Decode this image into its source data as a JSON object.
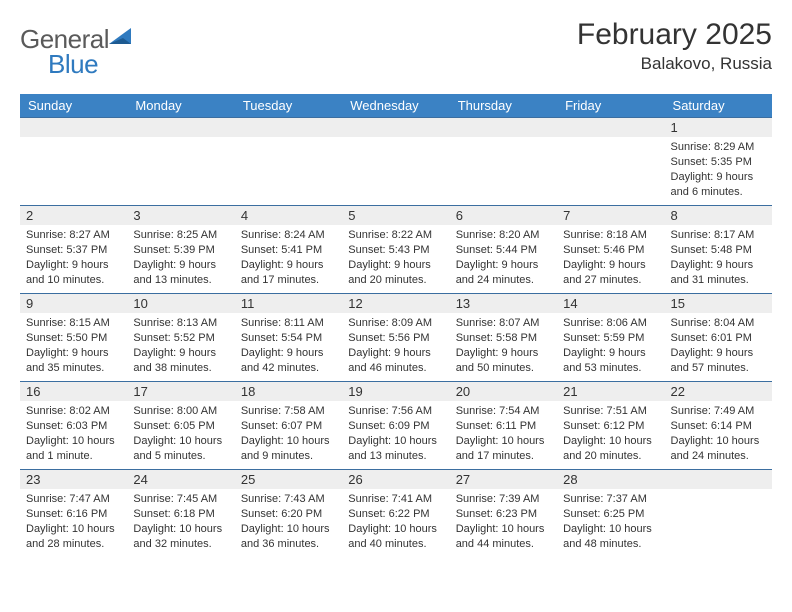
{
  "brand": {
    "part1": "General",
    "part2": "Blue"
  },
  "title": "February 2025",
  "location": "Balakovo, Russia",
  "colors": {
    "header_bg": "#3b82c4",
    "header_text": "#ffffff",
    "row_border": "#3b6ea0",
    "daynum_bg": "#eeeeee",
    "text": "#333333",
    "background": "#ffffff",
    "brand_gray": "#5a5a5a",
    "brand_blue": "#2f7abf"
  },
  "weekdays": [
    "Sunday",
    "Monday",
    "Tuesday",
    "Wednesday",
    "Thursday",
    "Friday",
    "Saturday"
  ],
  "weeks": [
    [
      {
        "n": "",
        "sunrise": "",
        "sunset": "",
        "daylight": ""
      },
      {
        "n": "",
        "sunrise": "",
        "sunset": "",
        "daylight": ""
      },
      {
        "n": "",
        "sunrise": "",
        "sunset": "",
        "daylight": ""
      },
      {
        "n": "",
        "sunrise": "",
        "sunset": "",
        "daylight": ""
      },
      {
        "n": "",
        "sunrise": "",
        "sunset": "",
        "daylight": ""
      },
      {
        "n": "",
        "sunrise": "",
        "sunset": "",
        "daylight": ""
      },
      {
        "n": "1",
        "sunrise": "Sunrise: 8:29 AM",
        "sunset": "Sunset: 5:35 PM",
        "daylight": "Daylight: 9 hours and 6 minutes."
      }
    ],
    [
      {
        "n": "2",
        "sunrise": "Sunrise: 8:27 AM",
        "sunset": "Sunset: 5:37 PM",
        "daylight": "Daylight: 9 hours and 10 minutes."
      },
      {
        "n": "3",
        "sunrise": "Sunrise: 8:25 AM",
        "sunset": "Sunset: 5:39 PM",
        "daylight": "Daylight: 9 hours and 13 minutes."
      },
      {
        "n": "4",
        "sunrise": "Sunrise: 8:24 AM",
        "sunset": "Sunset: 5:41 PM",
        "daylight": "Daylight: 9 hours and 17 minutes."
      },
      {
        "n": "5",
        "sunrise": "Sunrise: 8:22 AM",
        "sunset": "Sunset: 5:43 PM",
        "daylight": "Daylight: 9 hours and 20 minutes."
      },
      {
        "n": "6",
        "sunrise": "Sunrise: 8:20 AM",
        "sunset": "Sunset: 5:44 PM",
        "daylight": "Daylight: 9 hours and 24 minutes."
      },
      {
        "n": "7",
        "sunrise": "Sunrise: 8:18 AM",
        "sunset": "Sunset: 5:46 PM",
        "daylight": "Daylight: 9 hours and 27 minutes."
      },
      {
        "n": "8",
        "sunrise": "Sunrise: 8:17 AM",
        "sunset": "Sunset: 5:48 PM",
        "daylight": "Daylight: 9 hours and 31 minutes."
      }
    ],
    [
      {
        "n": "9",
        "sunrise": "Sunrise: 8:15 AM",
        "sunset": "Sunset: 5:50 PM",
        "daylight": "Daylight: 9 hours and 35 minutes."
      },
      {
        "n": "10",
        "sunrise": "Sunrise: 8:13 AM",
        "sunset": "Sunset: 5:52 PM",
        "daylight": "Daylight: 9 hours and 38 minutes."
      },
      {
        "n": "11",
        "sunrise": "Sunrise: 8:11 AM",
        "sunset": "Sunset: 5:54 PM",
        "daylight": "Daylight: 9 hours and 42 minutes."
      },
      {
        "n": "12",
        "sunrise": "Sunrise: 8:09 AM",
        "sunset": "Sunset: 5:56 PM",
        "daylight": "Daylight: 9 hours and 46 minutes."
      },
      {
        "n": "13",
        "sunrise": "Sunrise: 8:07 AM",
        "sunset": "Sunset: 5:58 PM",
        "daylight": "Daylight: 9 hours and 50 minutes."
      },
      {
        "n": "14",
        "sunrise": "Sunrise: 8:06 AM",
        "sunset": "Sunset: 5:59 PM",
        "daylight": "Daylight: 9 hours and 53 minutes."
      },
      {
        "n": "15",
        "sunrise": "Sunrise: 8:04 AM",
        "sunset": "Sunset: 6:01 PM",
        "daylight": "Daylight: 9 hours and 57 minutes."
      }
    ],
    [
      {
        "n": "16",
        "sunrise": "Sunrise: 8:02 AM",
        "sunset": "Sunset: 6:03 PM",
        "daylight": "Daylight: 10 hours and 1 minute."
      },
      {
        "n": "17",
        "sunrise": "Sunrise: 8:00 AM",
        "sunset": "Sunset: 6:05 PM",
        "daylight": "Daylight: 10 hours and 5 minutes."
      },
      {
        "n": "18",
        "sunrise": "Sunrise: 7:58 AM",
        "sunset": "Sunset: 6:07 PM",
        "daylight": "Daylight: 10 hours and 9 minutes."
      },
      {
        "n": "19",
        "sunrise": "Sunrise: 7:56 AM",
        "sunset": "Sunset: 6:09 PM",
        "daylight": "Daylight: 10 hours and 13 minutes."
      },
      {
        "n": "20",
        "sunrise": "Sunrise: 7:54 AM",
        "sunset": "Sunset: 6:11 PM",
        "daylight": "Daylight: 10 hours and 17 minutes."
      },
      {
        "n": "21",
        "sunrise": "Sunrise: 7:51 AM",
        "sunset": "Sunset: 6:12 PM",
        "daylight": "Daylight: 10 hours and 20 minutes."
      },
      {
        "n": "22",
        "sunrise": "Sunrise: 7:49 AM",
        "sunset": "Sunset: 6:14 PM",
        "daylight": "Daylight: 10 hours and 24 minutes."
      }
    ],
    [
      {
        "n": "23",
        "sunrise": "Sunrise: 7:47 AM",
        "sunset": "Sunset: 6:16 PM",
        "daylight": "Daylight: 10 hours and 28 minutes."
      },
      {
        "n": "24",
        "sunrise": "Sunrise: 7:45 AM",
        "sunset": "Sunset: 6:18 PM",
        "daylight": "Daylight: 10 hours and 32 minutes."
      },
      {
        "n": "25",
        "sunrise": "Sunrise: 7:43 AM",
        "sunset": "Sunset: 6:20 PM",
        "daylight": "Daylight: 10 hours and 36 minutes."
      },
      {
        "n": "26",
        "sunrise": "Sunrise: 7:41 AM",
        "sunset": "Sunset: 6:22 PM",
        "daylight": "Daylight: 10 hours and 40 minutes."
      },
      {
        "n": "27",
        "sunrise": "Sunrise: 7:39 AM",
        "sunset": "Sunset: 6:23 PM",
        "daylight": "Daylight: 10 hours and 44 minutes."
      },
      {
        "n": "28",
        "sunrise": "Sunrise: 7:37 AM",
        "sunset": "Sunset: 6:25 PM",
        "daylight": "Daylight: 10 hours and 48 minutes."
      },
      {
        "n": "",
        "sunrise": "",
        "sunset": "",
        "daylight": ""
      }
    ]
  ]
}
